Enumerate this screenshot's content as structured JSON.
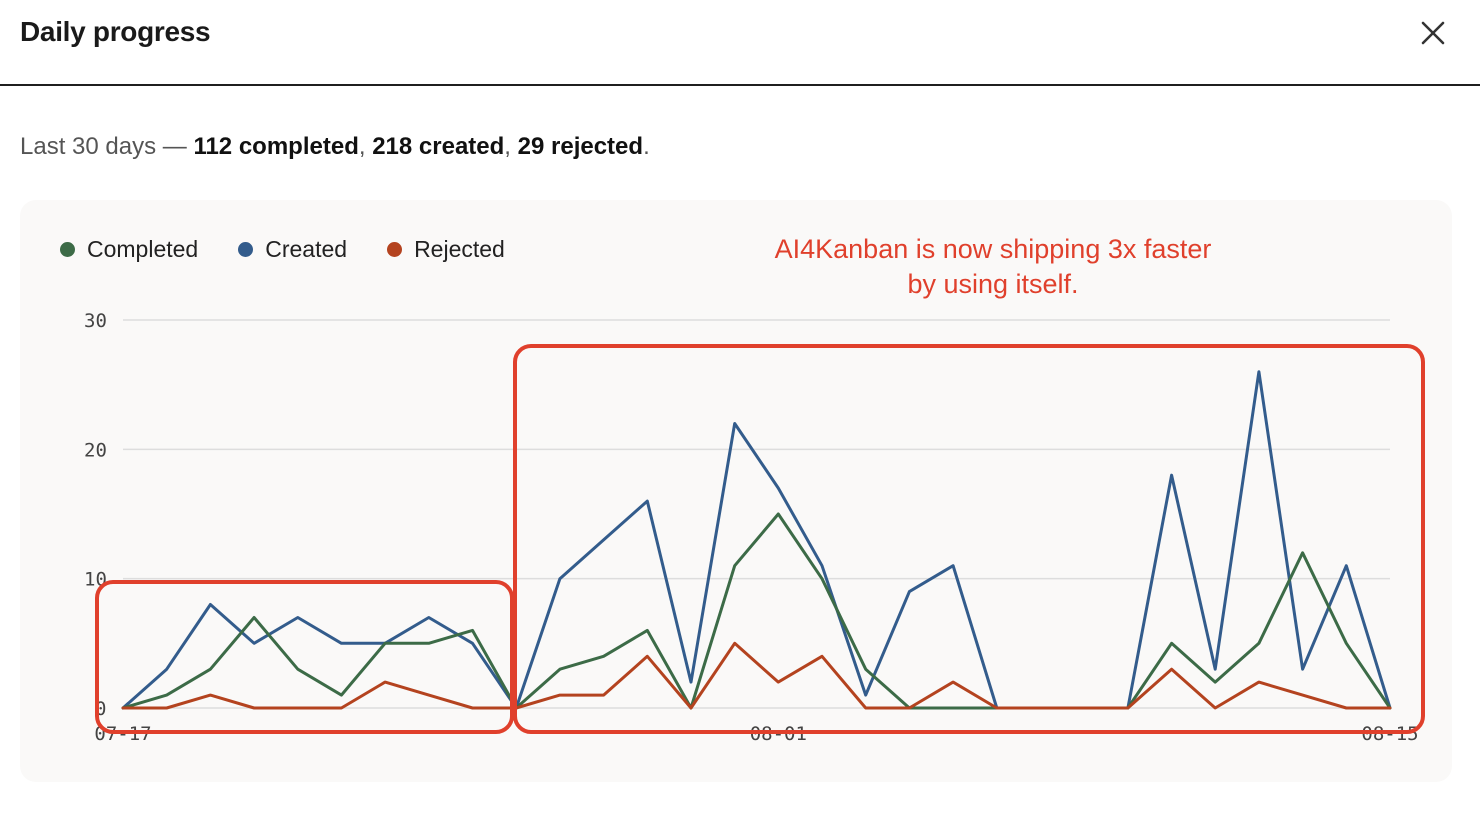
{
  "dialog": {
    "title": "Daily progress",
    "close_icon": "close-icon"
  },
  "summary": {
    "prefix": "Last 30 days — ",
    "completed": "112 completed",
    "sep1": ", ",
    "created": "218 created",
    "sep2": ", ",
    "rejected": "29 rejected",
    "suffix": "."
  },
  "annotation": {
    "text": "AI4Kanban is now shipping 3x faster by using itself.",
    "color": "#e0402c"
  },
  "chart_data": {
    "type": "line",
    "title": "",
    "xlabel": "",
    "ylabel": "",
    "ylim": [
      0,
      30
    ],
    "yticks": [
      "0",
      "10",
      "20",
      "30"
    ],
    "grid": true,
    "legend_position": "top-left",
    "x": [
      "07-17",
      "07-18",
      "07-19",
      "07-20",
      "07-21",
      "07-22",
      "07-23",
      "07-24",
      "07-25",
      "07-26",
      "07-27",
      "07-28",
      "07-29",
      "07-30",
      "07-31",
      "08-01",
      "08-02",
      "08-03",
      "08-04",
      "08-05",
      "08-06",
      "08-07",
      "08-08",
      "08-09",
      "08-10",
      "08-11",
      "08-12",
      "08-13",
      "08-14",
      "08-15"
    ],
    "xtick_labels": [
      {
        "index": 0,
        "label": "07-17"
      },
      {
        "index": 15,
        "label": "08-01"
      },
      {
        "index": 29,
        "label": "08-15"
      }
    ],
    "series": [
      {
        "name": "Completed",
        "color": "#3c6b47",
        "values": [
          0,
          1,
          3,
          7,
          3,
          1,
          5,
          5,
          6,
          0,
          3,
          4,
          6,
          0,
          11,
          15,
          10,
          3,
          0,
          0,
          0,
          0,
          0,
          0,
          5,
          2,
          5,
          12,
          5,
          0
        ]
      },
      {
        "name": "Created",
        "color": "#335c8c",
        "values": [
          0,
          3,
          8,
          5,
          7,
          5,
          5,
          7,
          5,
          0,
          10,
          13,
          16,
          2,
          22,
          17,
          11,
          1,
          9,
          11,
          0,
          0,
          0,
          0,
          18,
          3,
          26,
          3,
          11,
          0
        ]
      },
      {
        "name": "Rejected",
        "color": "#b4431f",
        "values": [
          0,
          0,
          1,
          0,
          0,
          0,
          2,
          1,
          0,
          0,
          1,
          1,
          4,
          0,
          5,
          2,
          4,
          0,
          0,
          2,
          0,
          0,
          0,
          0,
          3,
          0,
          2,
          1,
          0,
          0
        ]
      }
    ],
    "highlights": [
      {
        "from": "07-17",
        "to": "07-26",
        "color": "#e0402c"
      },
      {
        "from": "07-26",
        "to": "08-15",
        "color": "#e0402c"
      }
    ]
  }
}
